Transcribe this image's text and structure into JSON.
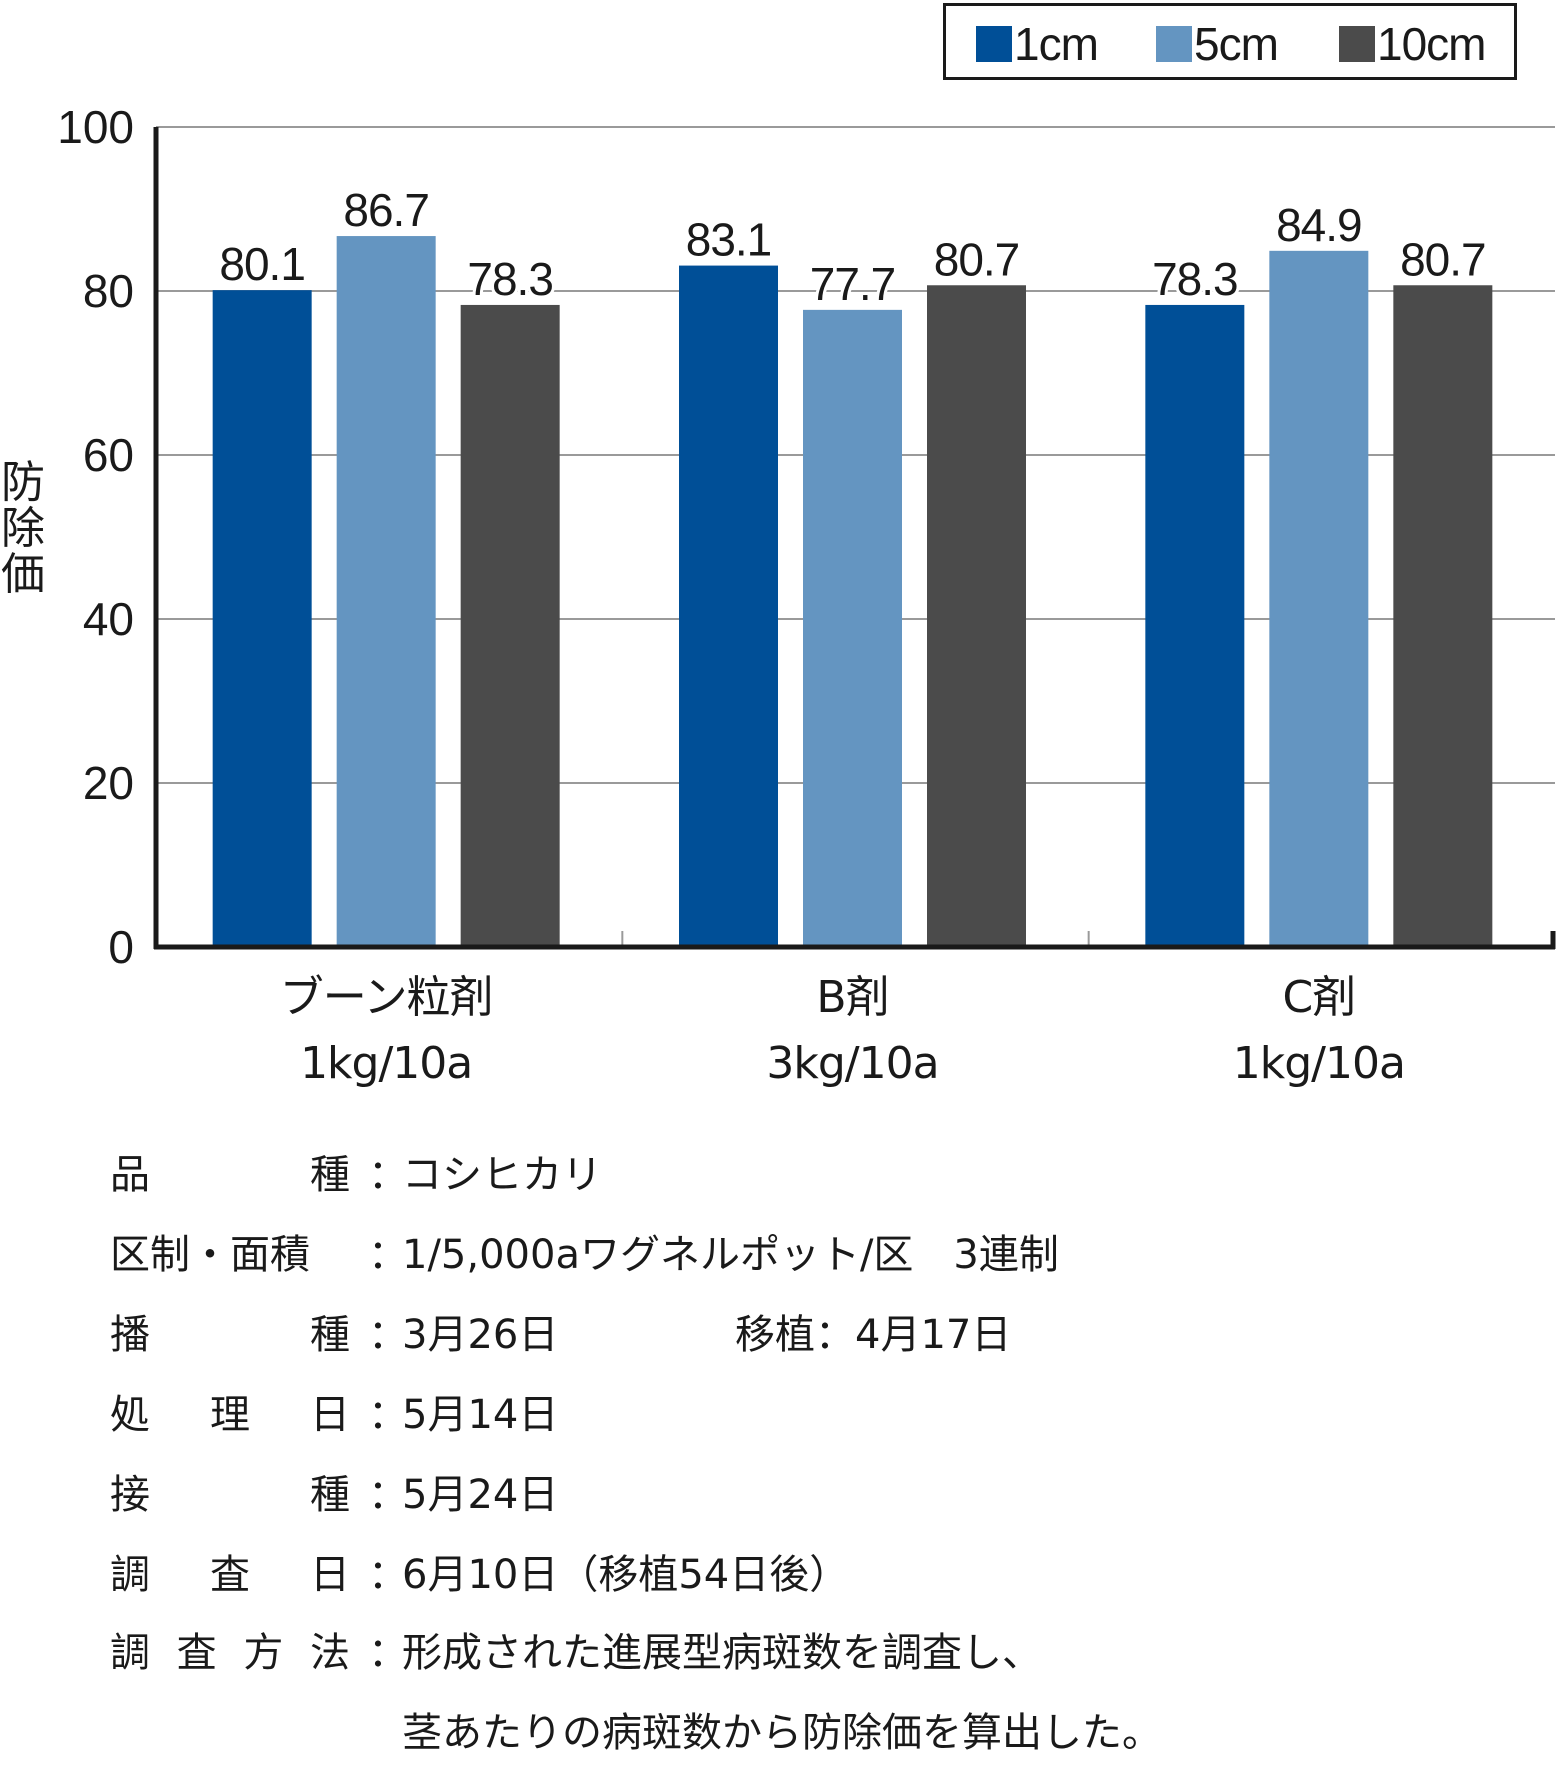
{
  "chart_data": {
    "type": "bar",
    "categories": [
      [
        "ブーン粒剤",
        "1kg/10a"
      ],
      [
        "B剤",
        "3kg/10a"
      ],
      [
        "C剤",
        "1kg/10a"
      ]
    ],
    "series": [
      {
        "name": "1cm",
        "color": "#004f97",
        "values": [
          80.1,
          83.1,
          78.3
        ]
      },
      {
        "name": "5cm",
        "color": "#6495c1",
        "values": [
          86.7,
          77.7,
          84.9
        ]
      },
      {
        "name": "10cm",
        "color": "#4b4b4b",
        "values": [
          78.3,
          80.7,
          80.7
        ]
      }
    ],
    "value_labels": [
      [
        "80.1",
        "83.1",
        "78.3"
      ],
      [
        "86.7",
        "77.7",
        "84.9"
      ],
      [
        "78.3",
        "80.7",
        "80.7"
      ]
    ],
    "ylabel": "防除価",
    "ylim": [
      0,
      100
    ],
    "yticks": [
      0,
      20,
      40,
      60,
      80,
      100
    ],
    "grid": true,
    "legend_position": "top-right"
  },
  "notes": [
    {
      "key": "品種",
      "value": "コシヒカリ"
    },
    {
      "key": "区制・面積",
      "value": "1/5,000aワグネルポット/区　3連制"
    },
    {
      "key": "播種",
      "value": "3月26日",
      "extra": "移植：4月17日"
    },
    {
      "key": "処理日",
      "value": "5月14日"
    },
    {
      "key": "接種",
      "value": "5月24日"
    },
    {
      "key": "調査日",
      "value": "6月10日（移植54日後）"
    },
    {
      "key": "調査方法",
      "value": "形成された進展型病斑数を調査し、"
    },
    {
      "key": "",
      "value": "茎あたりの病斑数から防除価を算出した。"
    }
  ]
}
